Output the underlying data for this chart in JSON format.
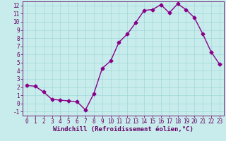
{
  "x": [
    0,
    1,
    2,
    3,
    4,
    5,
    6,
    7,
    8,
    9,
    10,
    11,
    12,
    13,
    14,
    15,
    16,
    17,
    18,
    19,
    20,
    21,
    22,
    23
  ],
  "y": [
    2.2,
    2.1,
    1.4,
    0.5,
    0.4,
    0.3,
    0.2,
    -0.8,
    1.2,
    4.3,
    5.2,
    7.5,
    8.5,
    9.9,
    11.4,
    11.5,
    12.1,
    11.1,
    12.2,
    11.5,
    10.5,
    8.5,
    6.3,
    4.8
  ],
  "line_color": "#880088",
  "marker": "D",
  "markersize": 2.5,
  "linewidth": 1.0,
  "bg_color": "#c8ecec",
  "grid_color": "#a0d8d8",
  "xlabel": "Windchill (Refroidissement éolien,°C)",
  "xlim": [
    -0.5,
    23.5
  ],
  "ylim": [
    -1.5,
    12.5
  ],
  "yticks": [
    -1,
    0,
    1,
    2,
    3,
    4,
    5,
    6,
    7,
    8,
    9,
    10,
    11,
    12
  ],
  "xticks": [
    0,
    1,
    2,
    3,
    4,
    5,
    6,
    7,
    8,
    9,
    10,
    11,
    12,
    13,
    14,
    15,
    16,
    17,
    18,
    19,
    20,
    21,
    22,
    23
  ],
  "xlabel_fontsize": 6.5,
  "tick_fontsize": 5.5,
  "spine_color": "#660066",
  "text_color": "#660066"
}
